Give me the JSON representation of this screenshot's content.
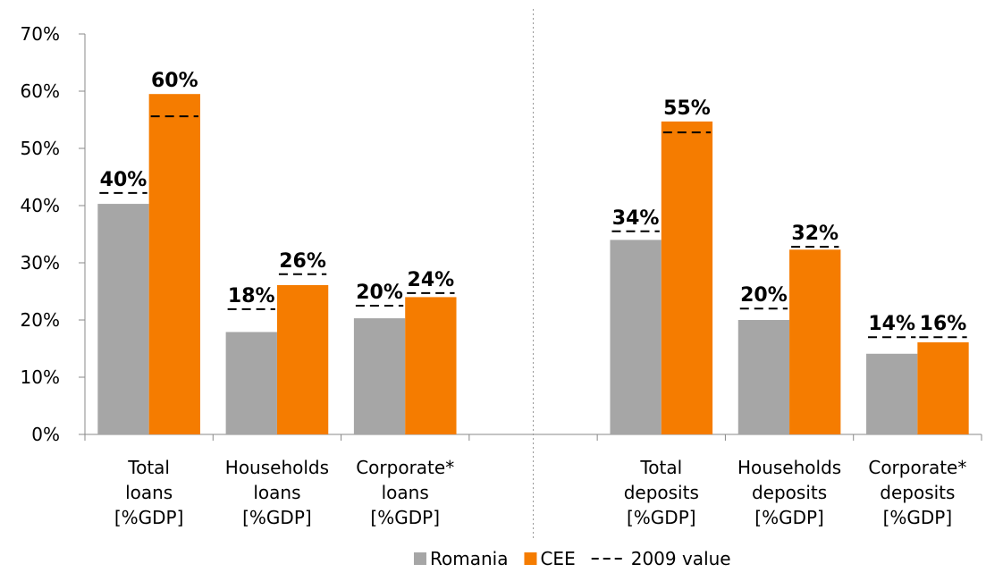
{
  "chart_data": {
    "type": "bar",
    "categories": [
      [
        "Total",
        "loans",
        "[%GDP]"
      ],
      [
        "Households",
        "loans",
        "[%GDP]"
      ],
      [
        "Corporate*",
        "loans",
        "[%GDP]"
      ],
      null,
      [
        "Total",
        "deposits",
        "[%GDP]"
      ],
      [
        "Households",
        "deposits",
        "[%GDP]"
      ],
      [
        "Corporate*",
        "deposits",
        "[%GDP]"
      ]
    ],
    "series": [
      {
        "name": "Romania",
        "color": "#a6a6a6",
        "values": [
          40.3,
          17.9,
          20.3,
          null,
          34,
          20,
          14.1
        ],
        "value_labels": [
          "40%",
          "18%",
          "20%",
          null,
          "34%",
          "20%",
          "14%"
        ]
      },
      {
        "name": "CEE",
        "color": "#f57c00",
        "values": [
          59.5,
          26.1,
          24,
          null,
          54.7,
          32.3,
          16.1
        ],
        "value_labels": [
          "60%",
          "26%",
          "24%",
          null,
          "55%",
          "32%",
          "16%"
        ]
      }
    ],
    "reference": {
      "name": "2009 value",
      "color": "#000000",
      "legend_color": "#3b2a55",
      "values": [
        [
          42.2,
          55.6
        ],
        [
          21.9,
          28
        ],
        [
          22.5,
          24.7
        ],
        null,
        [
          35.5,
          52.8
        ],
        [
          22,
          32.8
        ],
        [
          17,
          17
        ]
      ]
    },
    "ylim": [
      0,
      70
    ],
    "yticks": [
      {
        "value": 0,
        "label": "0%"
      },
      {
        "value": 10,
        "label": "10%"
      },
      {
        "value": 20,
        "label": "20%"
      },
      {
        "value": 30,
        "label": "30%"
      },
      {
        "value": 40,
        "label": "40%"
      },
      {
        "value": 50,
        "label": "50%"
      },
      {
        "value": 60,
        "label": "60%"
      },
      {
        "value": 70,
        "label": "70%"
      }
    ],
    "grid": false
  }
}
